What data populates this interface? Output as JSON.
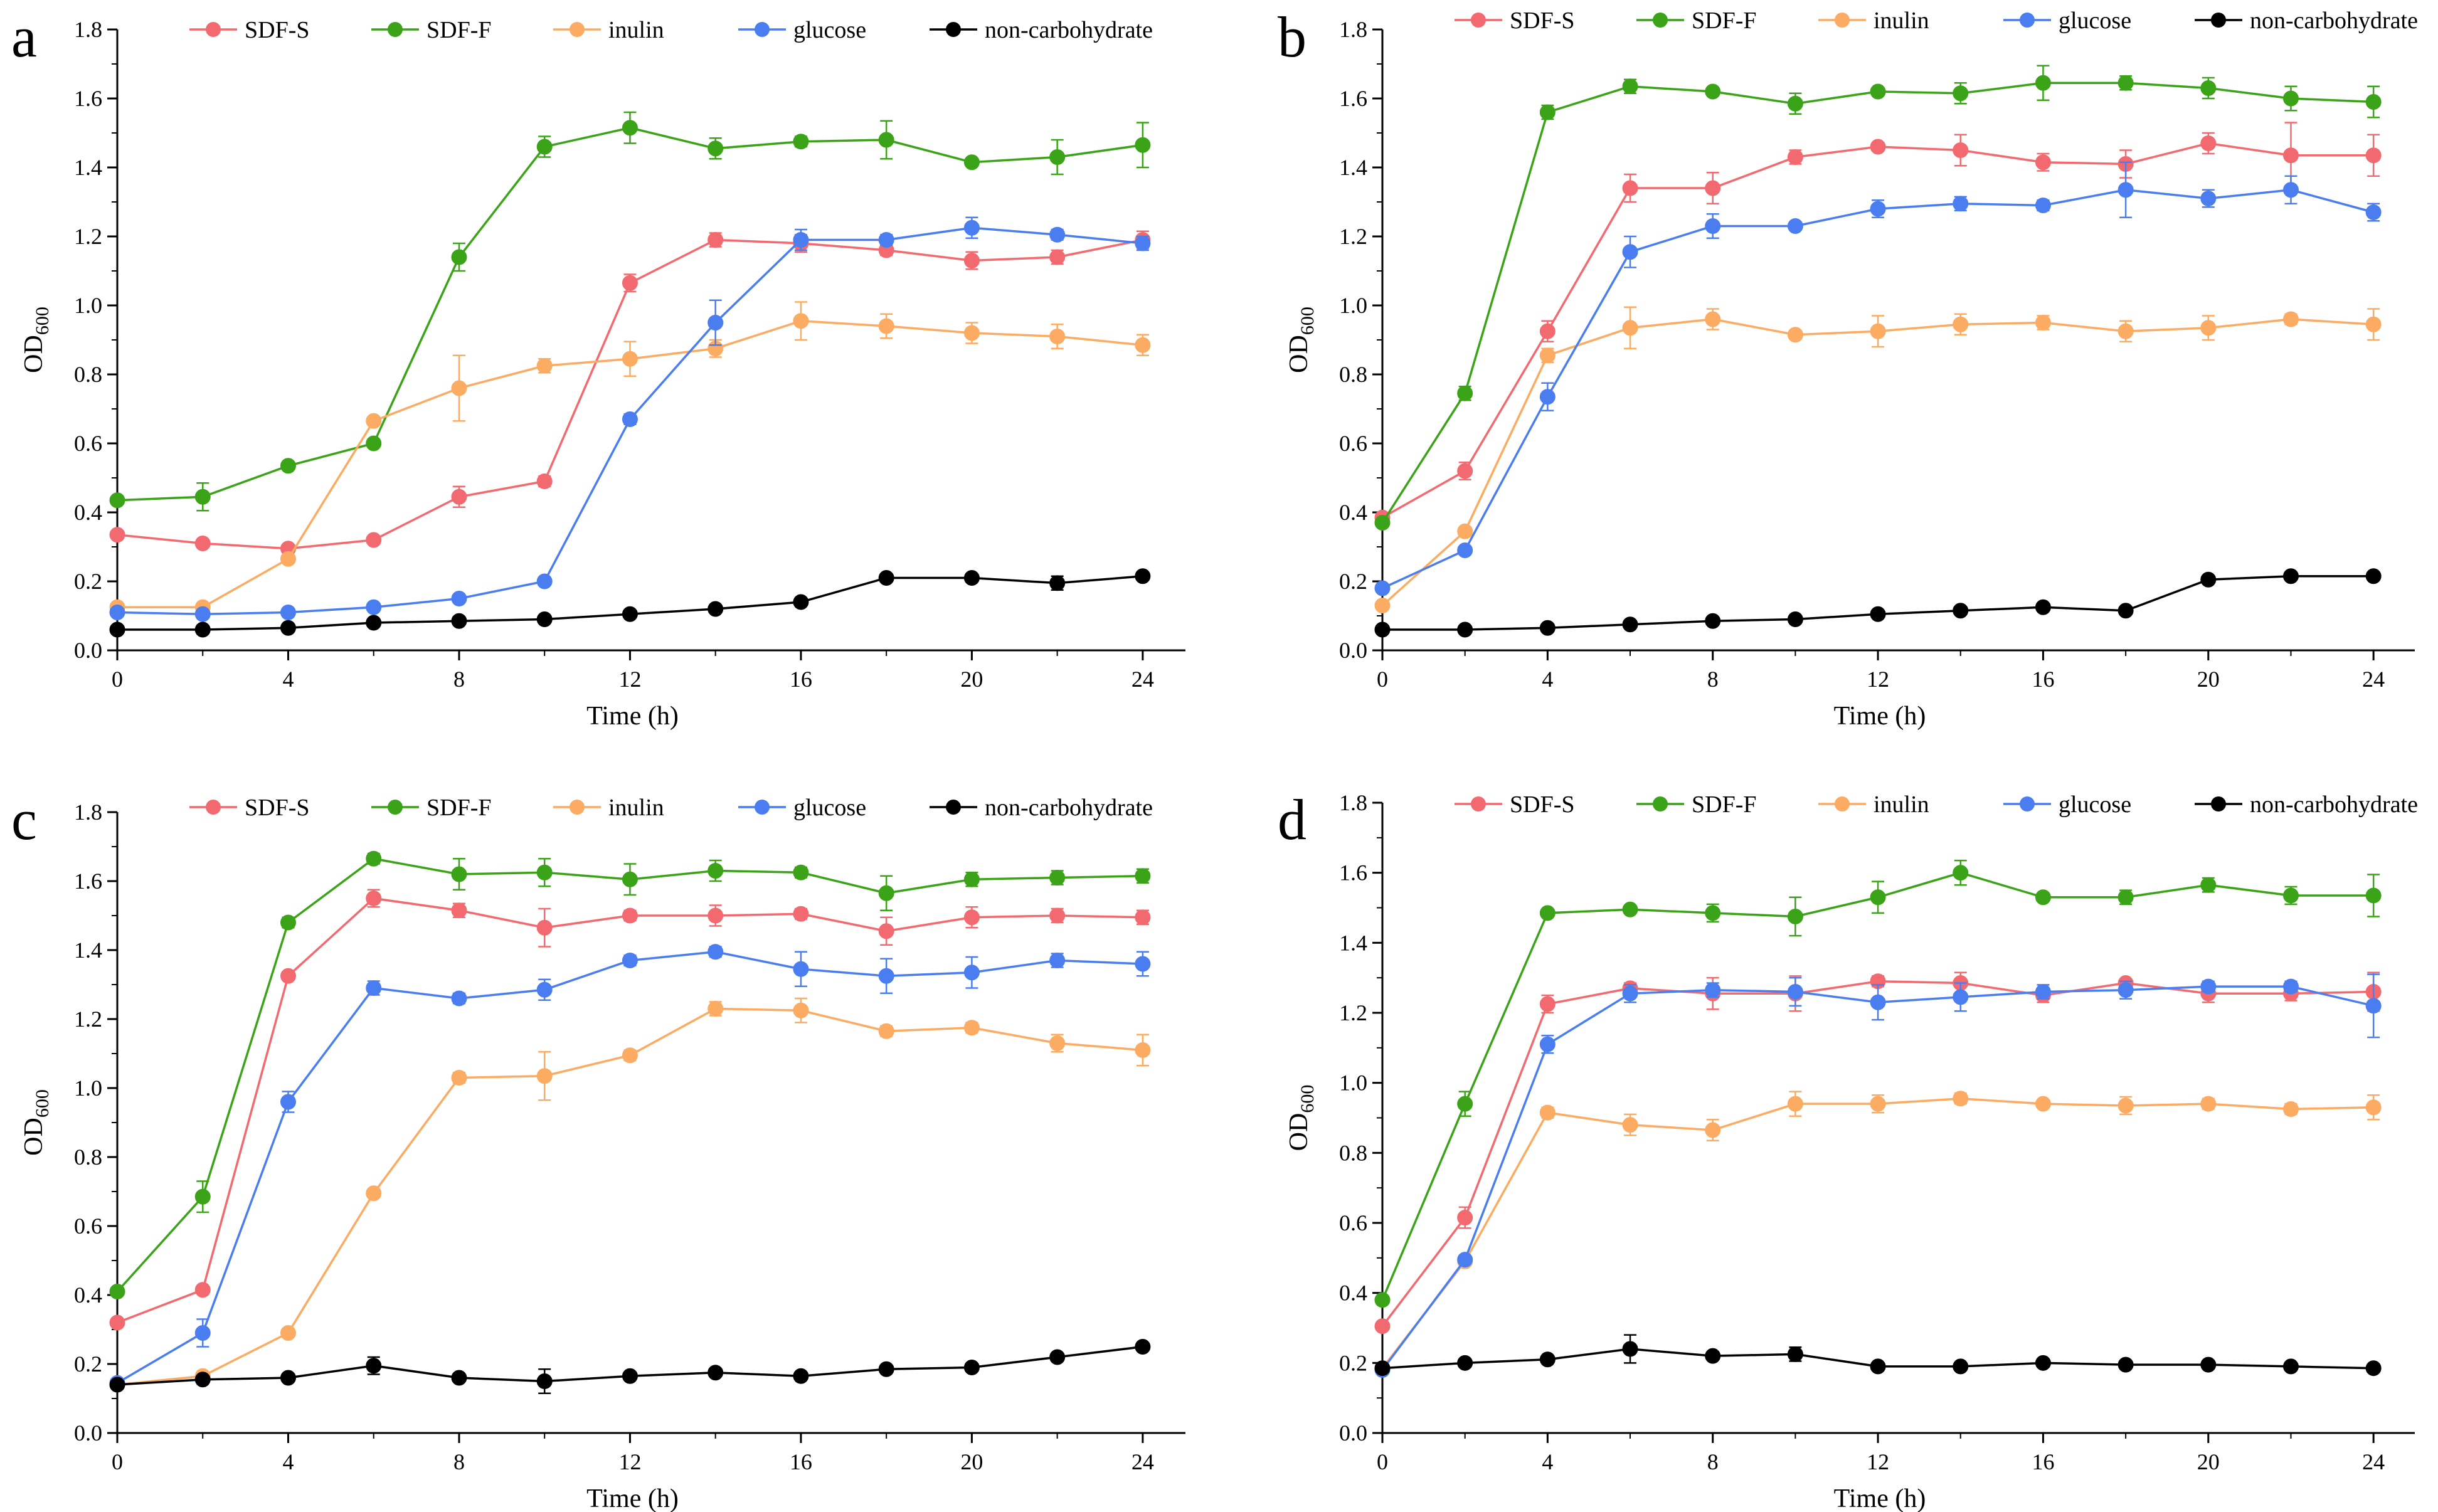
{
  "series_style": [
    {
      "name": "SDF-S",
      "color": "#f26a6f"
    },
    {
      "name": "SDF-F",
      "color": "#3aa317"
    },
    {
      "name": "inulin",
      "color": "#fbab62"
    },
    {
      "name": "glucose",
      "color": "#4a7ef0"
    },
    {
      "name": "non-carbohydrate",
      "color": "#000000"
    }
  ],
  "chart_data": [
    {
      "panel": "a",
      "type": "line",
      "xlabel": "Time (h)",
      "ylabel": "OD",
      "ylabel_sub": "600",
      "x": [
        0,
        2,
        4,
        6,
        8,
        10,
        12,
        14,
        16,
        18,
        20,
        22,
        24
      ],
      "xlim": [
        0,
        25
      ],
      "ylim": [
        0,
        1.8
      ],
      "xticks": [
        "0",
        "4",
        "8",
        "12",
        "16",
        "20",
        "24"
      ],
      "yticks": [
        "0.0",
        "0.2",
        "0.4",
        "0.6",
        "0.8",
        "1.0",
        "1.2",
        "1.4",
        "1.6",
        "1.8"
      ],
      "legend": "top",
      "series": [
        {
          "name": "SDF-S",
          "values": [
            0.335,
            0.31,
            0.295,
            0.32,
            0.445,
            0.49,
            1.065,
            1.19,
            1.18,
            1.16,
            1.13,
            1.14,
            1.19
          ],
          "errors": [
            0.01,
            0.01,
            0.01,
            0.01,
            0.03,
            0.015,
            0.025,
            0.02,
            0.025,
            0.015,
            0.025,
            0.02,
            0.025
          ]
        },
        {
          "name": "SDF-F",
          "values": [
            0.435,
            0.445,
            0.535,
            0.6,
            1.14,
            1.46,
            1.515,
            1.455,
            1.475,
            1.48,
            1.415,
            1.43,
            1.465
          ],
          "errors": [
            0.01,
            0.04,
            0.01,
            0.01,
            0.04,
            0.03,
            0.045,
            0.03,
            0.015,
            0.055,
            0.01,
            0.05,
            0.065
          ]
        },
        {
          "name": "inulin",
          "values": [
            0.125,
            0.125,
            0.265,
            0.665,
            0.76,
            0.825,
            0.845,
            0.875,
            0.955,
            0.94,
            0.92,
            0.91,
            0.885
          ],
          "errors": [
            0.01,
            0.01,
            0.01,
            0.01,
            0.095,
            0.02,
            0.05,
            0.025,
            0.055,
            0.035,
            0.03,
            0.035,
            0.03
          ]
        },
        {
          "name": "glucose",
          "values": [
            0.11,
            0.105,
            0.11,
            0.125,
            0.15,
            0.2,
            0.67,
            0.95,
            1.19,
            1.19,
            1.225,
            1.205,
            1.18
          ],
          "errors": [
            0.01,
            0.01,
            0.01,
            0.01,
            0.01,
            0.01,
            0.015,
            0.065,
            0.03,
            0.015,
            0.03,
            0.015,
            0.02
          ]
        },
        {
          "name": "non-carbohydrate",
          "values": [
            0.06,
            0.06,
            0.065,
            0.08,
            0.085,
            0.09,
            0.105,
            0.12,
            0.14,
            0.21,
            0.21,
            0.195,
            0.215
          ],
          "errors": [
            0.005,
            0.005,
            0.005,
            0.005,
            0.005,
            0.005,
            0.005,
            0.005,
            0.005,
            0.01,
            0.01,
            0.02,
            0.01
          ]
        }
      ]
    },
    {
      "panel": "b",
      "type": "line",
      "xlabel": "Time (h)",
      "ylabel": "OD",
      "ylabel_sub": "600",
      "x": [
        0,
        2,
        4,
        6,
        8,
        10,
        12,
        14,
        16,
        18,
        20,
        22,
        24
      ],
      "xlim": [
        0,
        25
      ],
      "ylim": [
        0,
        1.8
      ],
      "xticks": [
        "0",
        "4",
        "8",
        "12",
        "16",
        "20",
        "24"
      ],
      "yticks": [
        "0.0",
        "0.2",
        "0.4",
        "0.6",
        "0.8",
        "1.0",
        "1.2",
        "1.4",
        "1.6",
        "1.8"
      ],
      "legend": "top",
      "series": [
        {
          "name": "SDF-S",
          "values": [
            0.385,
            0.52,
            0.925,
            1.34,
            1.34,
            1.43,
            1.46,
            1.45,
            1.415,
            1.41,
            1.47,
            1.435,
            1.435
          ],
          "errors": [
            0.01,
            0.025,
            0.03,
            0.04,
            0.045,
            0.02,
            0.01,
            0.045,
            0.025,
            0.04,
            0.03,
            0.095,
            0.06
          ]
        },
        {
          "name": "SDF-F",
          "values": [
            0.37,
            0.745,
            1.56,
            1.635,
            1.62,
            1.585,
            1.62,
            1.615,
            1.645,
            1.645,
            1.63,
            1.6,
            1.59
          ],
          "errors": [
            0.01,
            0.02,
            0.02,
            0.02,
            0.01,
            0.03,
            0.01,
            0.03,
            0.05,
            0.02,
            0.03,
            0.035,
            0.045
          ]
        },
        {
          "name": "inulin",
          "values": [
            0.13,
            0.345,
            0.855,
            0.935,
            0.96,
            0.915,
            0.925,
            0.945,
            0.95,
            0.925,
            0.935,
            0.96,
            0.945
          ],
          "errors": [
            0.01,
            0.01,
            0.02,
            0.06,
            0.03,
            0.01,
            0.045,
            0.03,
            0.02,
            0.03,
            0.035,
            0.015,
            0.045
          ]
        },
        {
          "name": "glucose",
          "values": [
            0.18,
            0.29,
            0.735,
            1.155,
            1.23,
            1.23,
            1.28,
            1.295,
            1.29,
            1.335,
            1.31,
            1.335,
            1.27
          ],
          "errors": [
            0.01,
            0.01,
            0.04,
            0.045,
            0.035,
            0.01,
            0.025,
            0.02,
            0.015,
            0.08,
            0.025,
            0.04,
            0.025
          ]
        },
        {
          "name": "non-carbohydrate",
          "values": [
            0.06,
            0.06,
            0.065,
            0.075,
            0.085,
            0.09,
            0.105,
            0.115,
            0.125,
            0.115,
            0.205,
            0.215,
            0.215
          ],
          "errors": [
            0.005,
            0.005,
            0.005,
            0.005,
            0.005,
            0.005,
            0.005,
            0.005,
            0.005,
            0.005,
            0.01,
            0.01,
            0.005
          ]
        }
      ]
    },
    {
      "panel": "c",
      "type": "line",
      "xlabel": "Time (h)",
      "ylabel": "OD",
      "ylabel_sub": "600",
      "x": [
        0,
        2,
        4,
        6,
        8,
        10,
        12,
        14,
        16,
        18,
        20,
        22,
        24
      ],
      "xlim": [
        0,
        25
      ],
      "ylim": [
        0,
        1.8
      ],
      "xticks": [
        "0",
        "4",
        "8",
        "12",
        "16",
        "20",
        "24"
      ],
      "yticks": [
        "0.0",
        "0.2",
        "0.4",
        "0.6",
        "0.8",
        "1.0",
        "1.2",
        "1.4",
        "1.6",
        "1.8"
      ],
      "legend": "top",
      "series": [
        {
          "name": "SDF-S",
          "values": [
            0.32,
            0.415,
            1.325,
            1.55,
            1.515,
            1.465,
            1.5,
            1.5,
            1.505,
            1.455,
            1.495,
            1.5,
            1.495
          ],
          "errors": [
            0.01,
            0.01,
            0.01,
            0.025,
            0.02,
            0.055,
            0.015,
            0.03,
            0.015,
            0.04,
            0.03,
            0.02,
            0.02
          ]
        },
        {
          "name": "SDF-F",
          "values": [
            0.41,
            0.685,
            1.48,
            1.665,
            1.62,
            1.625,
            1.605,
            1.63,
            1.625,
            1.565,
            1.605,
            1.61,
            1.615
          ],
          "errors": [
            0.01,
            0.045,
            0.015,
            0.015,
            0.045,
            0.04,
            0.045,
            0.03,
            0.015,
            0.05,
            0.02,
            0.02,
            0.02
          ]
        },
        {
          "name": "inulin",
          "values": [
            0.14,
            0.165,
            0.29,
            0.695,
            1.03,
            1.035,
            1.095,
            1.23,
            1.225,
            1.165,
            1.175,
            1.13,
            1.11
          ],
          "errors": [
            0.01,
            0.01,
            0.01,
            0.01,
            0.015,
            0.07,
            0.015,
            0.02,
            0.035,
            0.015,
            0.015,
            0.025,
            0.045
          ]
        },
        {
          "name": "glucose",
          "values": [
            0.145,
            0.29,
            0.96,
            1.29,
            1.26,
            1.285,
            1.37,
            1.395,
            1.345,
            1.325,
            1.335,
            1.37,
            1.36
          ],
          "errors": [
            0.01,
            0.04,
            0.03,
            0.02,
            0.015,
            0.03,
            0.015,
            0.015,
            0.05,
            0.05,
            0.045,
            0.02,
            0.035
          ]
        },
        {
          "name": "non-carbohydrate",
          "values": [
            0.14,
            0.155,
            0.16,
            0.195,
            0.16,
            0.15,
            0.165,
            0.175,
            0.165,
            0.185,
            0.19,
            0.22,
            0.25
          ],
          "errors": [
            0.005,
            0.01,
            0.01,
            0.025,
            0.01,
            0.035,
            0.01,
            0.01,
            0.01,
            0.01,
            0.01,
            0.01,
            0.01
          ]
        }
      ]
    },
    {
      "panel": "d",
      "type": "line",
      "xlabel": "Time (h)",
      "ylabel": "OD",
      "ylabel_sub": "600",
      "x": [
        0,
        2,
        4,
        6,
        8,
        10,
        12,
        14,
        16,
        18,
        20,
        22,
        24
      ],
      "xlim": [
        0,
        25
      ],
      "ylim": [
        0,
        1.8
      ],
      "xticks": [
        "0",
        "4",
        "8",
        "12",
        "16",
        "20",
        "24"
      ],
      "yticks": [
        "0.0",
        "0.2",
        "0.4",
        "0.6",
        "0.8",
        "1.0",
        "1.2",
        "1.4",
        "1.6",
        "1.8"
      ],
      "legend": "top",
      "series": [
        {
          "name": "SDF-S",
          "values": [
            0.305,
            0.615,
            1.225,
            1.27,
            1.255,
            1.255,
            1.29,
            1.285,
            1.25,
            1.285,
            1.255,
            1.255,
            1.26
          ],
          "errors": [
            0.01,
            0.03,
            0.025,
            0.015,
            0.045,
            0.05,
            0.015,
            0.03,
            0.02,
            0.01,
            0.025,
            0.02,
            0.055
          ]
        },
        {
          "name": "SDF-F",
          "values": [
            0.38,
            0.94,
            1.485,
            1.495,
            1.485,
            1.475,
            1.53,
            1.6,
            1.53,
            1.53,
            1.565,
            1.535,
            1.535
          ],
          "errors": [
            0.01,
            0.035,
            0.01,
            0.01,
            0.025,
            0.055,
            0.045,
            0.035,
            0.01,
            0.02,
            0.02,
            0.025,
            0.06
          ]
        },
        {
          "name": "inulin",
          "values": [
            0.185,
            0.49,
            0.915,
            0.88,
            0.865,
            0.94,
            0.94,
            0.955,
            0.94,
            0.935,
            0.94,
            0.925,
            0.93
          ],
          "errors": [
            0.01,
            0.01,
            0.015,
            0.03,
            0.03,
            0.035,
            0.025,
            0.015,
            0.01,
            0.025,
            0.015,
            0.015,
            0.035
          ]
        },
        {
          "name": "glucose",
          "values": [
            0.18,
            0.495,
            1.11,
            1.255,
            1.265,
            1.26,
            1.23,
            1.245,
            1.26,
            1.265,
            1.275,
            1.275,
            1.22
          ],
          "errors": [
            0.01,
            0.01,
            0.025,
            0.025,
            0.02,
            0.04,
            0.05,
            0.04,
            0.02,
            0.025,
            0.015,
            0.015,
            0.09
          ]
        },
        {
          "name": "non-carbohydrate",
          "values": [
            0.185,
            0.2,
            0.21,
            0.24,
            0.22,
            0.225,
            0.19,
            0.19,
            0.2,
            0.195,
            0.195,
            0.19,
            0.185
          ],
          "errors": [
            0.005,
            0.01,
            0.01,
            0.04,
            0.01,
            0.02,
            0.005,
            0.005,
            0.005,
            0.005,
            0.005,
            0.005,
            0.005
          ]
        }
      ]
    }
  ]
}
